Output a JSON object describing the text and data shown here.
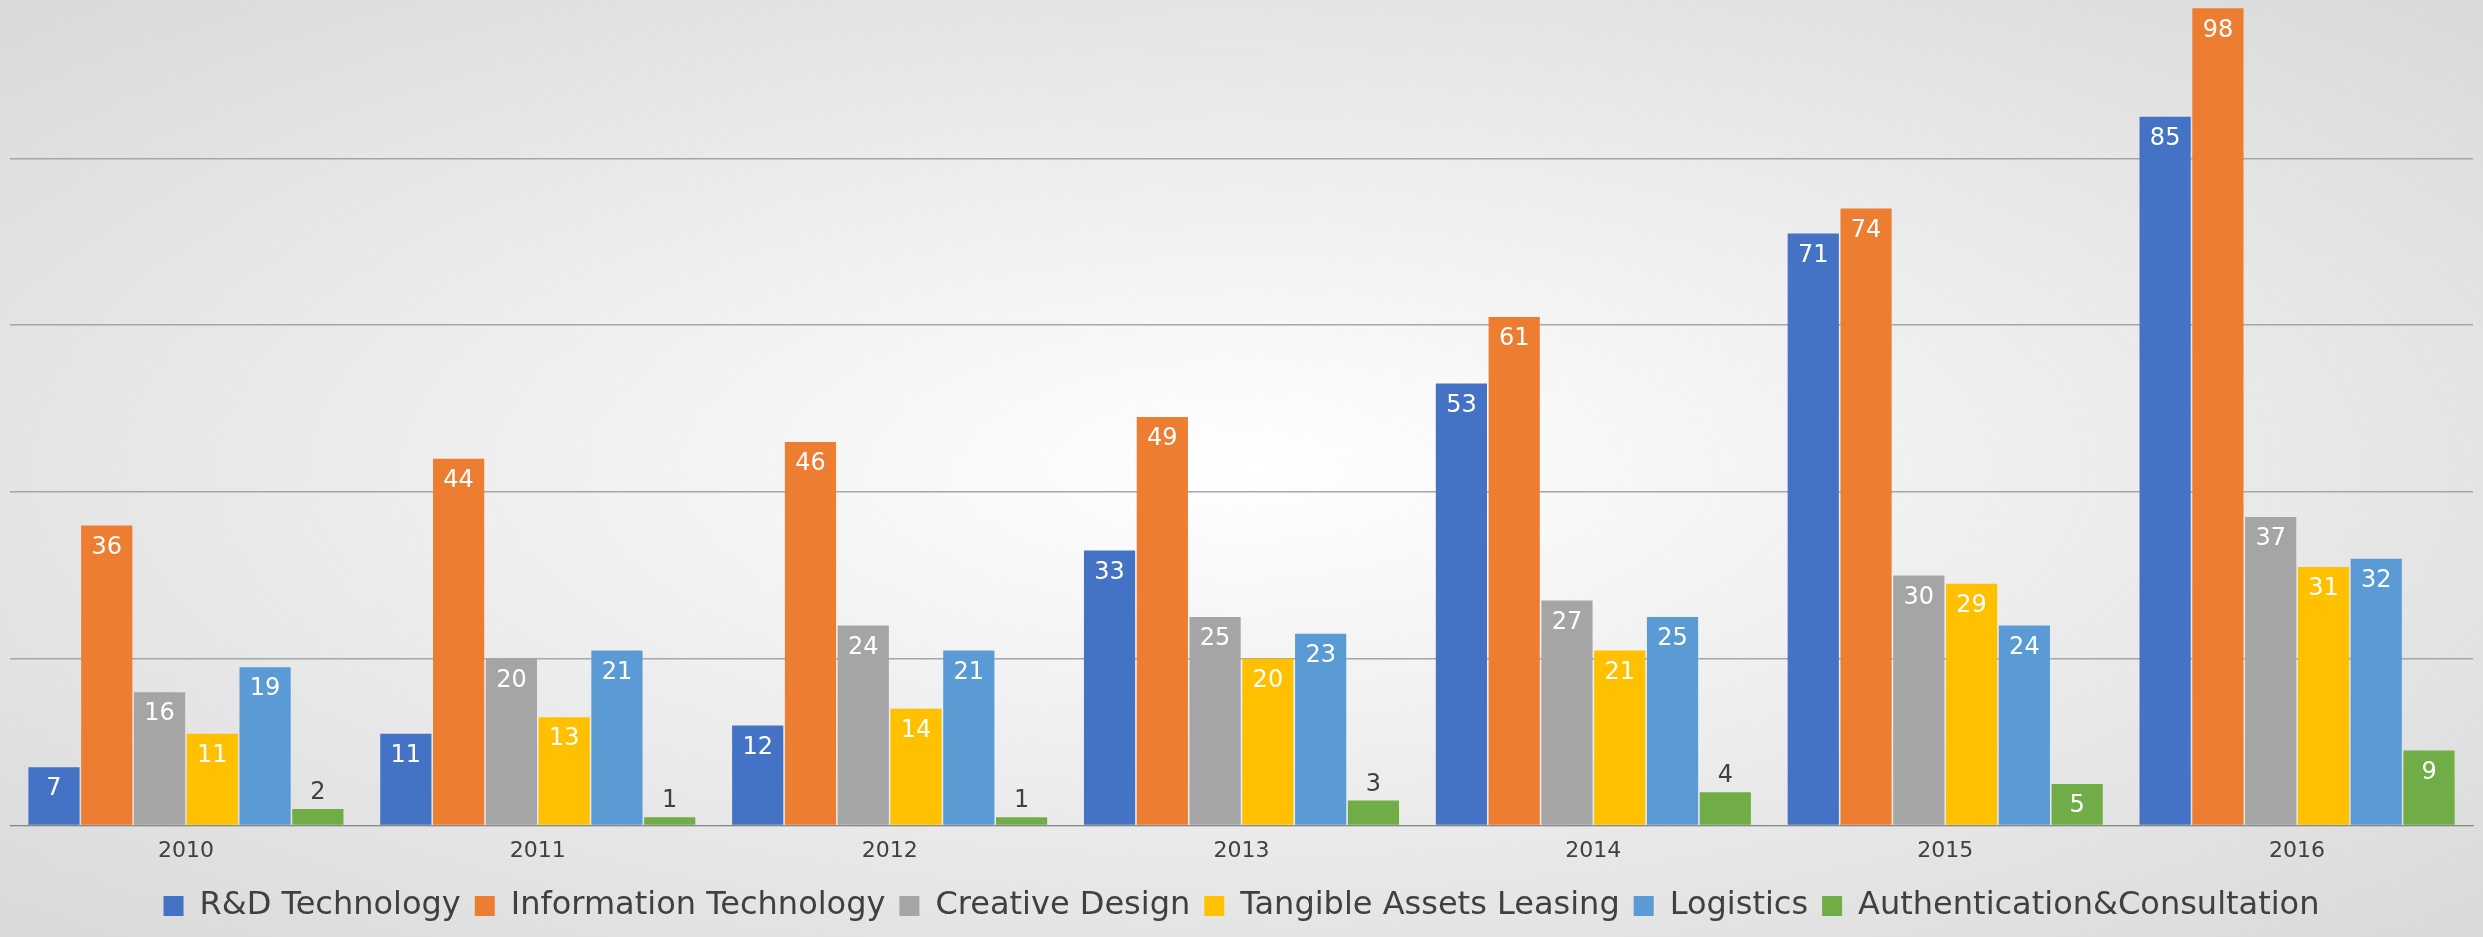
{
  "chart_data": {
    "type": "bar",
    "categories": [
      "2010",
      "2011",
      "2012",
      "2013",
      "2014",
      "2015",
      "2016"
    ],
    "series": [
      {
        "name": "R&D Technology",
        "color": "#4472c4",
        "values": [
          7,
          11,
          12,
          33,
          53,
          71,
          85
        ]
      },
      {
        "name": "Information Technology",
        "color": "#ed7d31",
        "values": [
          36,
          44,
          46,
          49,
          61,
          74,
          98
        ]
      },
      {
        "name": "Creative Design",
        "color": "#a5a5a5",
        "values": [
          16,
          20,
          24,
          25,
          27,
          30,
          37
        ]
      },
      {
        "name": "Tangible Assets Leasing",
        "color": "#ffc000",
        "values": [
          11,
          13,
          14,
          20,
          21,
          29,
          31
        ]
      },
      {
        "name": "Logistics",
        "color": "#5b9bd5",
        "values": [
          19,
          21,
          21,
          23,
          25,
          24,
          32
        ]
      },
      {
        "name": "Authentication&Consultation",
        "color": "#70ad47",
        "values": [
          2,
          1,
          1,
          3,
          4,
          5,
          9
        ]
      }
    ],
    "ylim": [
      0,
      99
    ],
    "yticks": [
      {
        "value": 0,
        "label": null
      },
      {
        "value": 20,
        "label": null
      },
      {
        "value": 40,
        "label": null
      },
      {
        "value": 60,
        "label": null
      },
      {
        "value": 80,
        "label": null
      }
    ],
    "tick_labels": "x",
    "grid": "y",
    "legend": "bottom",
    "data_labels": true
  }
}
